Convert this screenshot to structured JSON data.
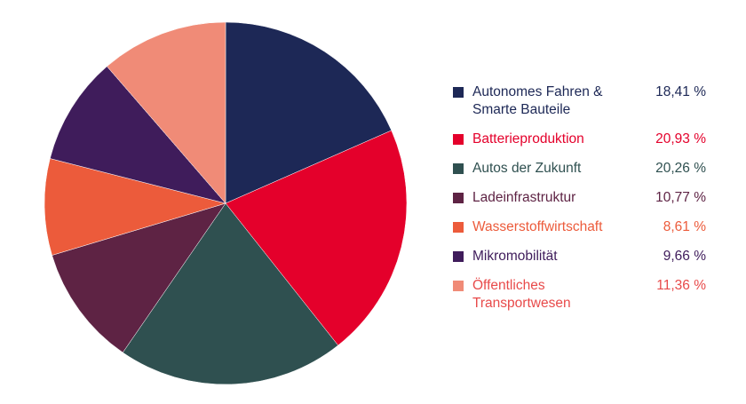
{
  "chart_data": {
    "type": "pie",
    "categories": [
      "Autonomes Fahren & Smarte Bauteile",
      "Batterieproduktion",
      "Autos der Zukunft",
      "Ladeinfrastruktur",
      "Wasserstoffwirtschaft",
      "Mikromobilität",
      "Öffentliches Transportwesen"
    ],
    "values": [
      18.41,
      20.93,
      20.26,
      10.77,
      8.61,
      9.66,
      11.36
    ],
    "value_labels": [
      "18,41 %",
      "20,93 %",
      "20,26 %",
      "10,77 %",
      "8,61 %",
      "9,66 %",
      "11,36 %"
    ],
    "colors": [
      "#1d2856",
      "#e4002b",
      "#2f5050",
      "#5e2344",
      "#ec5b3b",
      "#3f1c5b",
      "#f08b77"
    ],
    "text_colors": [
      "#1d2856",
      "#e4002b",
      "#2f5050",
      "#5e2344",
      "#ec5b3b",
      "#3f1c5b",
      "#e84a4a"
    ],
    "start": "top",
    "direction": "clockwise",
    "legend_position": "right"
  }
}
